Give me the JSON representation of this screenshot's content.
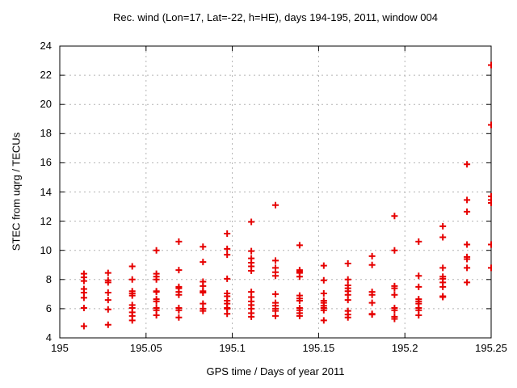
{
  "chart_data": {
    "type": "scatter",
    "title": "Rec. wind (Lon=17, Lat=-22, h=HE), days 194-195, 2011, window 004",
    "xlabel": "GPS time / Days of year 2011",
    "ylabel": "STEC from uqrg / TECUs",
    "xlim": [
      195,
      195.25
    ],
    "ylim": [
      4,
      24
    ],
    "xticks": [
      195,
      195.05,
      195.1,
      195.15,
      195.2,
      195.25
    ],
    "xtick_labels": [
      "195",
      "195.05",
      "195.1",
      "195.15",
      "195.2",
      "195.25"
    ],
    "yticks": [
      4,
      6,
      8,
      10,
      12,
      14,
      16,
      18,
      20,
      22,
      24
    ],
    "ytick_labels": [
      "4",
      "6",
      "8",
      "10",
      "12",
      "14",
      "16",
      "18",
      "20",
      "22",
      "24"
    ],
    "grid": true,
    "legend": "none",
    "marker": {
      "shape": "plus",
      "color": "#e60000",
      "size": 9,
      "stroke_width": 2
    },
    "grid_color": "#b3b3b3",
    "border_color": "#000000",
    "series": [
      {
        "name": "STEC",
        "columns": [
          {
            "x": 195.014,
            "y": [
              8.4,
              8.15,
              7.9,
              7.35,
              7.1,
              6.75,
              6.05,
              4.8
            ]
          },
          {
            "x": 195.028,
            "y": [
              8.45,
              7.95,
              7.8,
              7.1,
              6.6,
              5.95,
              4.9
            ]
          },
          {
            "x": 195.042,
            "y": [
              8.9,
              8.0,
              7.2,
              7.05,
              6.9,
              6.25,
              6.05,
              5.75,
              5.5,
              5.2
            ]
          },
          {
            "x": 195.056,
            "y": [
              10.0,
              8.4,
              8.2,
              8.0,
              7.2,
              7.15,
              6.65,
              6.5,
              6.05,
              5.9,
              5.55
            ]
          },
          {
            "x": 195.069,
            "y": [
              10.6,
              8.65,
              7.5,
              7.4,
              7.15,
              6.95,
              6.05,
              5.9,
              5.4
            ]
          },
          {
            "x": 195.083,
            "y": [
              10.25,
              9.2,
              7.85,
              7.55,
              7.2,
              7.1,
              6.35,
              6.0,
              5.85
            ]
          },
          {
            "x": 195.097,
            "y": [
              11.15,
              10.1,
              9.7,
              8.05,
              7.05,
              6.85,
              6.55,
              6.35,
              6.05,
              6.0,
              5.65
            ]
          },
          {
            "x": 195.111,
            "y": [
              11.95,
              9.95,
              9.45,
              9.15,
              8.9,
              8.6,
              7.15,
              6.8,
              6.5,
              6.25,
              6.0,
              5.7,
              5.45
            ]
          },
          {
            "x": 195.125,
            "y": [
              13.1,
              9.3,
              8.8,
              8.5,
              8.25,
              7.0,
              6.4,
              6.2,
              6.0,
              5.85,
              5.5
            ]
          },
          {
            "x": 195.139,
            "y": [
              10.35,
              8.65,
              8.55,
              8.45,
              8.2,
              6.9,
              6.7,
              6.55,
              6.05,
              5.9,
              5.7,
              5.5
            ]
          },
          {
            "x": 195.153,
            "y": [
              8.95,
              7.95,
              7.05,
              6.55,
              6.4,
              6.2,
              6.05,
              5.9,
              5.2
            ]
          },
          {
            "x": 195.167,
            "y": [
              9.1,
              8.0,
              7.6,
              7.4,
              7.2,
              6.95,
              6.6,
              5.85,
              5.6,
              5.4
            ]
          },
          {
            "x": 195.181,
            "y": [
              9.6,
              9.0,
              7.15,
              6.95,
              6.4,
              5.65,
              5.6
            ]
          },
          {
            "x": 195.194,
            "y": [
              12.35,
              10.0,
              7.55,
              7.4,
              6.95,
              6.05,
              5.9,
              5.45,
              5.3
            ]
          },
          {
            "x": 195.208,
            "y": [
              10.6,
              8.25,
              7.5,
              6.65,
              6.5,
              6.35,
              6.05,
              5.9,
              5.55
            ]
          },
          {
            "x": 195.222,
            "y": [
              11.65,
              10.9,
              8.8,
              8.2,
              8.05,
              7.8,
              7.5,
              6.85,
              6.8
            ]
          },
          {
            "x": 195.236,
            "y": [
              15.9,
              13.45,
              12.65,
              10.4,
              9.55,
              9.4,
              8.8,
              7.8
            ]
          },
          {
            "x": 195.25,
            "y": [
              22.7,
              18.6,
              13.7,
              13.45,
              13.25,
              10.4,
              8.8
            ]
          }
        ]
      }
    ]
  }
}
